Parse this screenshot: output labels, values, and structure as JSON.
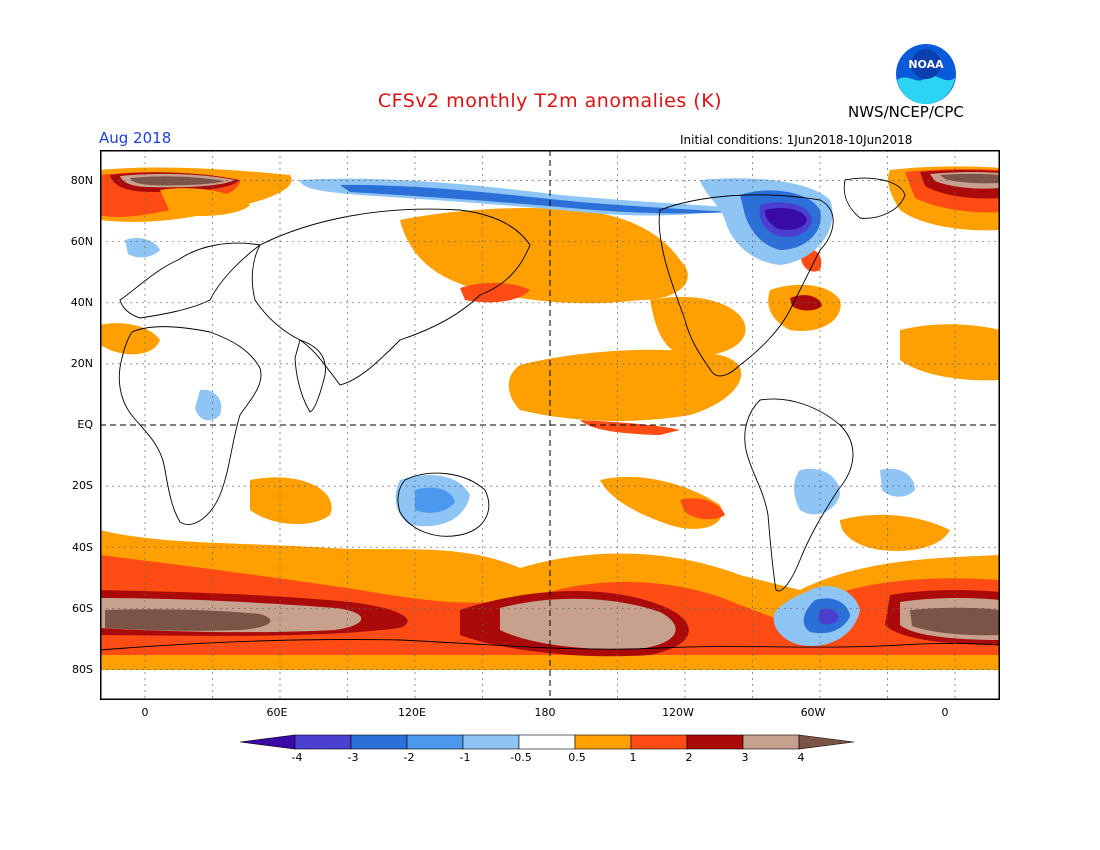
{
  "header": {
    "title": "CFSv2 monthly T2m anomalies (K)",
    "agency": "NWS/NCEP/CPC",
    "logo_text": "NOAA",
    "valid_month": "Aug 2018",
    "initial_conditions": "Initial conditions: 1Jun2018-10Jun2018"
  },
  "map": {
    "projection": "cylindrical equidistant",
    "lon_range": [
      -20,
      380
    ],
    "lat_range": [
      -90,
      90
    ],
    "lat_labels": [
      "80N",
      "60N",
      "40N",
      "20N",
      "EQ",
      "20S",
      "40S",
      "60S",
      "80S"
    ],
    "lon_labels": [
      "0",
      "60E",
      "120E",
      "180",
      "120W",
      "60W",
      "0"
    ],
    "dashed_reference_lines": [
      "EQ",
      "180"
    ]
  },
  "colorbar": {
    "unit": "K",
    "tick_labels": [
      "-4",
      "-3",
      "-2",
      "-1",
      "-0.5",
      "0.5",
      "1",
      "2",
      "3",
      "4"
    ],
    "bins": [
      {
        "range": "< -4",
        "color": "#3a0aa8"
      },
      {
        "range": "-4 to -3",
        "color": "#4a3fd0"
      },
      {
        "range": "-3 to -2",
        "color": "#2b6fd8"
      },
      {
        "range": "-2 to -1",
        "color": "#4b98ee"
      },
      {
        "range": "-1 to -0.5",
        "color": "#8ec5f5"
      },
      {
        "range": "-0.5 to 0.5",
        "color": "#ffffff"
      },
      {
        "range": "0.5 to 1",
        "color": "#ffa000"
      },
      {
        "range": "1 to 2",
        "color": "#ff4c14"
      },
      {
        "range": "2 to 3",
        "color": "#aa0a0a"
      },
      {
        "range": "3 to 4",
        "color": "#c8a08e"
      },
      {
        "range": "> 4",
        "color": "#7a5446"
      }
    ]
  },
  "anomaly_regions": [
    {
      "name": "Arctic Atlantic sector",
      "lon": 0,
      "lat": 75,
      "level": 4
    },
    {
      "name": "Arctic Atlantic sector (right)",
      "lon": 360,
      "lat": 75,
      "level": 4
    },
    {
      "name": "Hudson Bay / Labrador",
      "lon": 290,
      "lat": 63,
      "level": -4
    },
    {
      "name": "Arctic Siberian coast",
      "lon": 190,
      "lat": 72,
      "level": -2
    },
    {
      "name": "North Pacific",
      "lon": 200,
      "lat": 42,
      "level": 1
    },
    {
      "name": "Tropical East Pacific",
      "lon": 220,
      "lat": 8,
      "level": 1
    },
    {
      "name": "US East Coast",
      "lon": 292,
      "lat": 42,
      "level": 2
    },
    {
      "name": "Southern Ocean Indian sector",
      "lon": 30,
      "lat": -65,
      "level": 4
    },
    {
      "name": "Ross Sea / Pacific sector",
      "lon": 195,
      "lat": -66,
      "level": 4
    },
    {
      "name": "Weddell Sea",
      "lon": 360,
      "lat": -66,
      "level": 4
    },
    {
      "name": "Antarctic Peninsula",
      "lon": 295,
      "lat": -66,
      "level": -3
    },
    {
      "name": "Australia",
      "lon": 135,
      "lat": -25,
      "level": -1
    }
  ]
}
